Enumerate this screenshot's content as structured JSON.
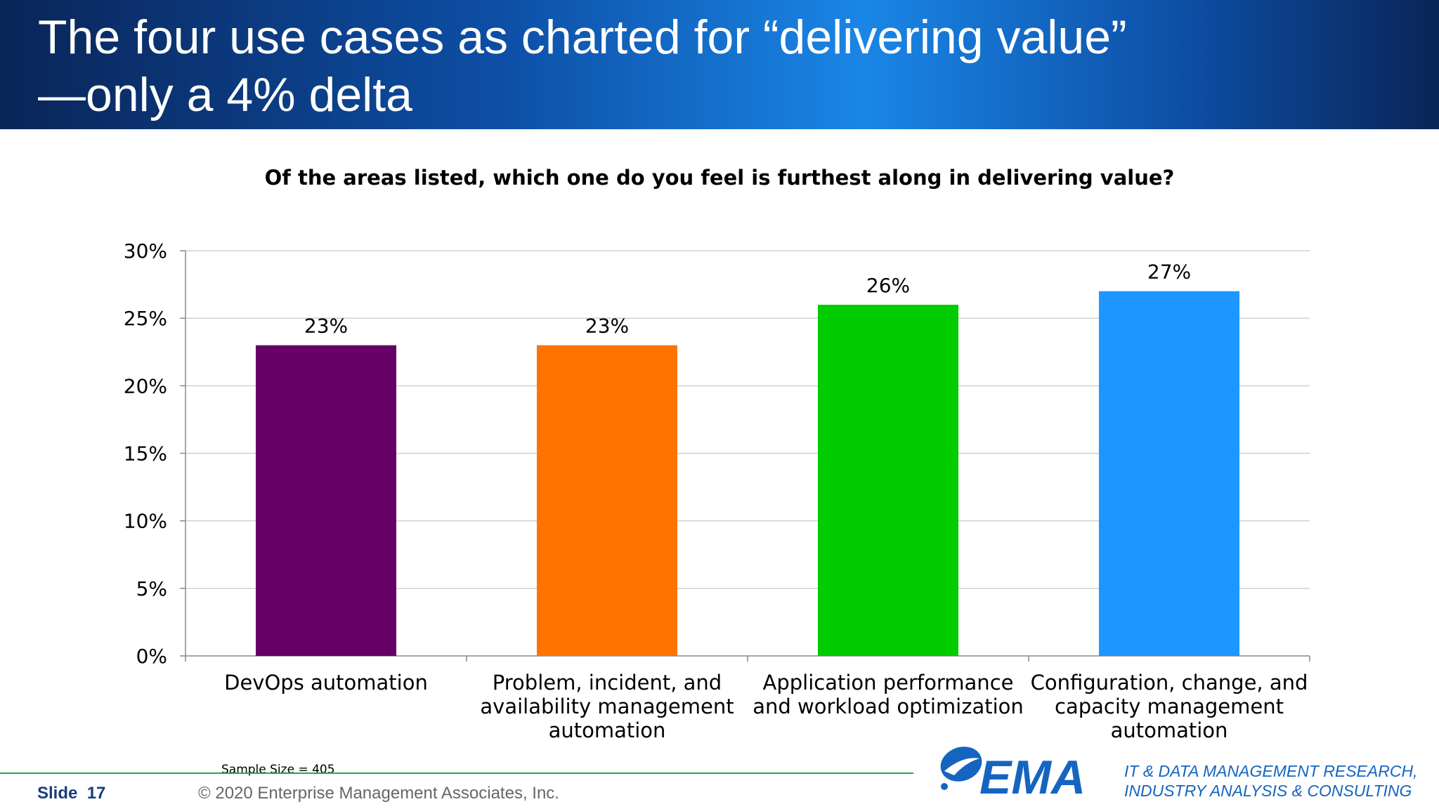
{
  "slide": {
    "title_line1": "The four use cases as charted for “delivering value”",
    "title_line2": "—only a 4% delta",
    "question": "Of the areas listed, which one do you feel is furthest along in delivering value?",
    "sample_size": "Sample Size = 405",
    "slide_label": "Slide",
    "slide_number": "17",
    "copyright": "© 2020 Enterprise Management Associates, Inc.",
    "logo_text": "EMA",
    "tagline_line1": "IT & DATA MANAGEMENT RESEARCH,",
    "tagline_line2": "INDUSTRY ANALYSIS & CONSULTING"
  },
  "colors": {
    "header_dark": "#0a2558",
    "header_bright": "#1a86e6",
    "footer_line": "#29a84a",
    "logo_blue": "#1565c0"
  },
  "chart_data": {
    "type": "bar",
    "title": "Of the areas listed, which one do you feel is furthest along in delivering value?",
    "categories": [
      [
        "DevOps automation"
      ],
      [
        "Problem, incident, and",
        "availability management",
        "automation"
      ],
      [
        "Application performance",
        "and workload optimization"
      ],
      [
        "Configuration, change, and",
        "capacity management",
        "automation"
      ]
    ],
    "values": [
      23,
      23,
      26,
      27
    ],
    "value_labels": [
      "23%",
      "23%",
      "26%",
      "27%"
    ],
    "colors": [
      "#660066",
      "#ff7300",
      "#00cc00",
      "#1e96ff"
    ],
    "y_ticks": [
      "0%",
      "5%",
      "10%",
      "15%",
      "20%",
      "25%",
      "30%"
    ],
    "ylim": [
      0,
      30
    ],
    "y_step": 5,
    "grid": true,
    "legend": "none"
  }
}
